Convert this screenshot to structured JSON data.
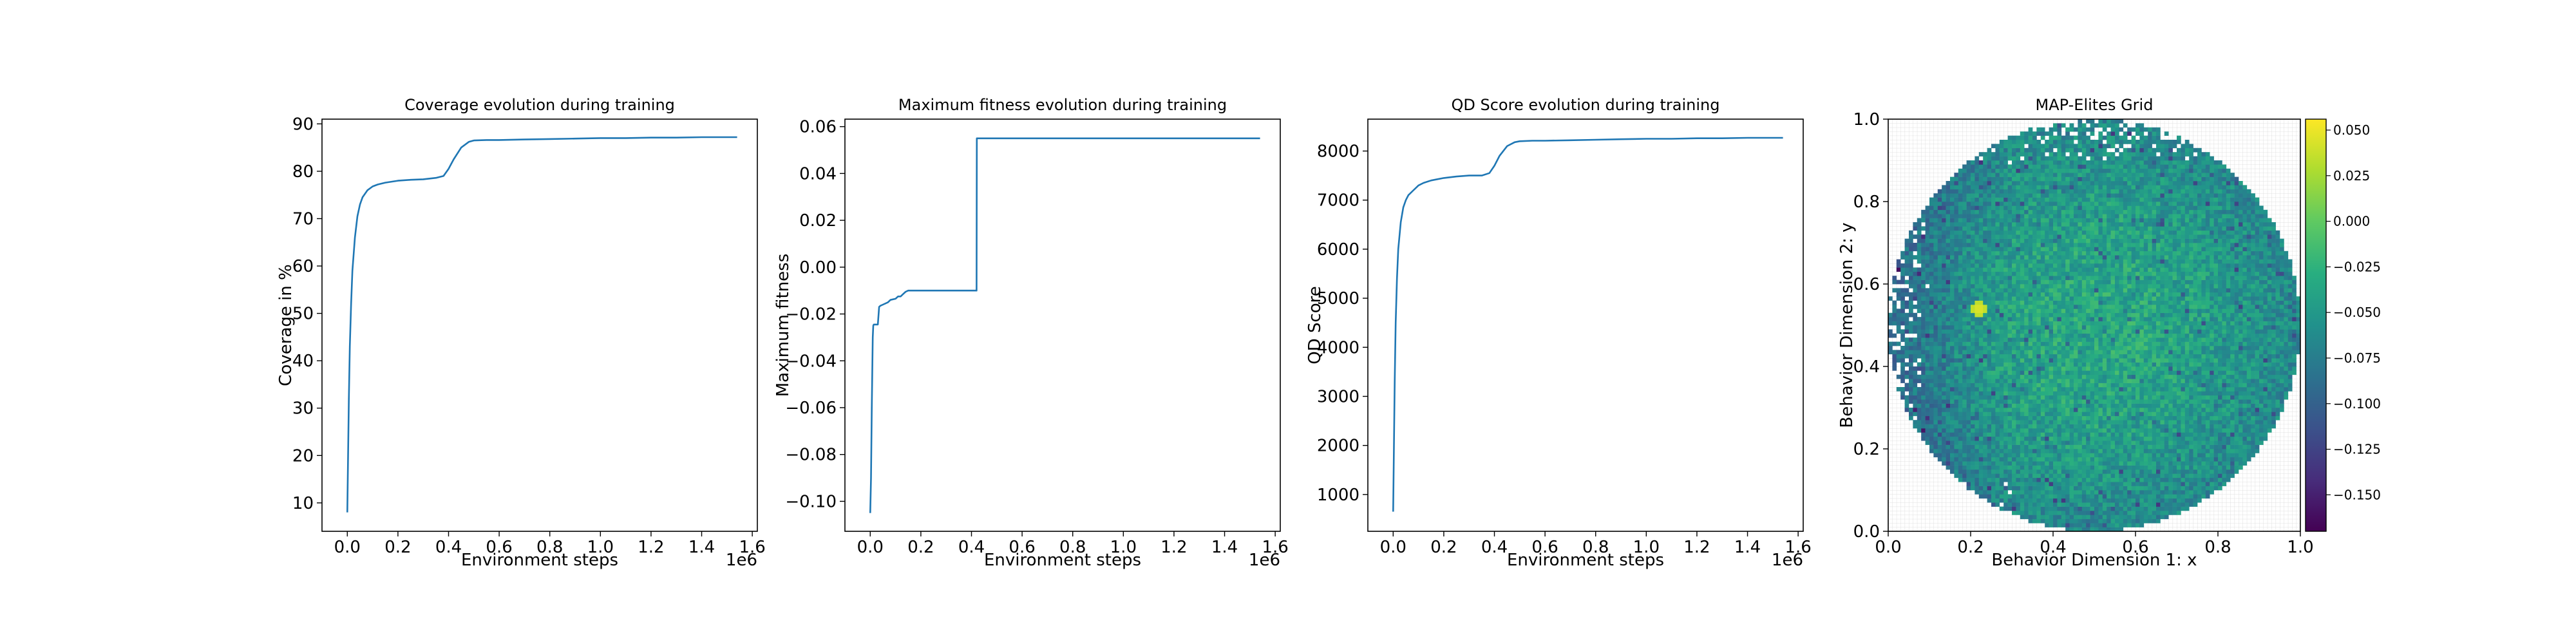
{
  "chart_data": [
    {
      "type": "line",
      "title": "Coverage evolution during training",
      "xlabel": "Environment steps",
      "ylabel": "Coverage in %",
      "x_offset_label": "1e6",
      "xlim": [
        -0.1,
        1.62
      ],
      "ylim": [
        4.0,
        91.0
      ],
      "xticks": [
        0.0,
        0.2,
        0.4,
        0.6,
        0.8,
        1.0,
        1.2,
        1.4,
        1.6
      ],
      "xtick_labels": [
        "0.0",
        "0.2",
        "0.4",
        "0.6",
        "0.8",
        "1.0",
        "1.2",
        "1.4",
        "1.6"
      ],
      "yticks": [
        10,
        20,
        30,
        40,
        50,
        60,
        70,
        80,
        90
      ],
      "ytick_labels": [
        "10",
        "20",
        "30",
        "40",
        "50",
        "60",
        "70",
        "80",
        "90"
      ],
      "grid": false,
      "color": "#1f77b4",
      "series": [
        {
          "x": [
            0.0,
            0.003,
            0.006,
            0.01,
            0.015,
            0.02,
            0.03,
            0.04,
            0.05,
            0.06,
            0.08,
            0.1,
            0.12,
            0.15,
            0.2,
            0.25,
            0.3,
            0.35,
            0.38,
            0.4,
            0.42,
            0.45,
            0.48,
            0.5,
            0.55,
            0.6,
            0.7,
            0.8,
            0.9,
            1.0,
            1.1,
            1.2,
            1.3,
            1.4,
            1.54
          ],
          "y": [
            8.0,
            20.0,
            32.0,
            43.0,
            52.0,
            59.0,
            66.0,
            70.5,
            73.0,
            74.5,
            76.0,
            76.8,
            77.2,
            77.6,
            78.0,
            78.2,
            78.3,
            78.6,
            79.0,
            80.5,
            82.5,
            85.0,
            86.2,
            86.5,
            86.6,
            86.6,
            86.7,
            86.8,
            86.9,
            87.0,
            87.0,
            87.1,
            87.1,
            87.2,
            87.2
          ]
        }
      ]
    },
    {
      "type": "line",
      "title": "Maximum fitness evolution during training",
      "xlabel": "Environment steps",
      "ylabel": "Maximum fitness",
      "x_offset_label": "1e6",
      "xlim": [
        -0.1,
        1.62
      ],
      "ylim": [
        -0.1128,
        0.0632
      ],
      "xticks": [
        0.0,
        0.2,
        0.4,
        0.6,
        0.8,
        1.0,
        1.2,
        1.4,
        1.6
      ],
      "xtick_labels": [
        "0.0",
        "0.2",
        "0.4",
        "0.6",
        "0.8",
        "1.0",
        "1.2",
        "1.4",
        "1.6"
      ],
      "yticks": [
        -0.1,
        -0.08,
        -0.06,
        -0.04,
        -0.02,
        0.0,
        0.02,
        0.04,
        0.06
      ],
      "ytick_labels": [
        "−0.10",
        "−0.08",
        "−0.06",
        "−0.04",
        "−0.02",
        "0.00",
        "0.02",
        "0.04",
        "0.06"
      ],
      "grid": false,
      "color": "#1f77b4",
      "series": [
        {
          "x": [
            0.0,
            0.003,
            0.006,
            0.01,
            0.012,
            0.014,
            0.02,
            0.03,
            0.035,
            0.04,
            0.05,
            0.07,
            0.08,
            0.1,
            0.11,
            0.12,
            0.13,
            0.14,
            0.15,
            0.2,
            0.3,
            0.42,
            0.421,
            0.5,
            1.0,
            1.54
          ],
          "y": [
            -0.105,
            -0.09,
            -0.06,
            -0.03,
            -0.025,
            -0.0245,
            -0.0245,
            -0.0245,
            -0.017,
            -0.0165,
            -0.016,
            -0.015,
            -0.014,
            -0.0135,
            -0.0125,
            -0.0125,
            -0.0115,
            -0.0105,
            -0.01,
            -0.01,
            -0.01,
            -0.01,
            0.055,
            0.055,
            0.055,
            0.055
          ]
        }
      ]
    },
    {
      "type": "line",
      "title": "QD Score evolution during training",
      "xlabel": "Environment steps",
      "ylabel": "QD Score",
      "x_offset_label": "1e6",
      "xlim": [
        -0.1,
        1.62
      ],
      "ylim": [
        250,
        8650
      ],
      "xticks": [
        0.0,
        0.2,
        0.4,
        0.6,
        0.8,
        1.0,
        1.2,
        1.4,
        1.6
      ],
      "xtick_labels": [
        "0.0",
        "0.2",
        "0.4",
        "0.6",
        "0.8",
        "1.0",
        "1.2",
        "1.4",
        "1.6"
      ],
      "yticks": [
        1000,
        2000,
        3000,
        4000,
        5000,
        6000,
        7000,
        8000
      ],
      "ytick_labels": [
        "1000",
        "2000",
        "3000",
        "4000",
        "5000",
        "6000",
        "7000",
        "8000"
      ],
      "grid": false,
      "color": "#1f77b4",
      "series": [
        {
          "x": [
            0.0,
            0.003,
            0.006,
            0.01,
            0.015,
            0.02,
            0.03,
            0.04,
            0.05,
            0.06,
            0.08,
            0.1,
            0.12,
            0.15,
            0.2,
            0.25,
            0.3,
            0.35,
            0.38,
            0.4,
            0.42,
            0.45,
            0.48,
            0.5,
            0.55,
            0.6,
            0.7,
            0.8,
            0.9,
            1.0,
            1.1,
            1.2,
            1.3,
            1.4,
            1.54
          ],
          "y": [
            650,
            2000,
            3300,
            4500,
            5400,
            6000,
            6550,
            6850,
            7000,
            7100,
            7200,
            7300,
            7350,
            7400,
            7450,
            7480,
            7500,
            7500,
            7550,
            7700,
            7900,
            8100,
            8180,
            8200,
            8210,
            8210,
            8220,
            8230,
            8240,
            8250,
            8250,
            8260,
            8260,
            8270,
            8270
          ]
        }
      ]
    },
    {
      "type": "heatmap",
      "title": "MAP-Elites Grid",
      "xlabel": "Behavior Dimension 1: x",
      "ylabel": "Behavior Dimension 2: y",
      "xlim": [
        0.0,
        1.0
      ],
      "ylim": [
        0.0,
        1.0
      ],
      "xticks": [
        0.0,
        0.2,
        0.4,
        0.6,
        0.8,
        1.0
      ],
      "xtick_labels": [
        "0.0",
        "0.2",
        "0.4",
        "0.6",
        "0.8",
        "1.0"
      ],
      "yticks": [
        0.0,
        0.2,
        0.4,
        0.6,
        0.8,
        1.0
      ],
      "ytick_labels": [
        "0.0",
        "0.2",
        "0.4",
        "0.6",
        "0.8",
        "1.0"
      ],
      "grid_cells": 100,
      "colormap": "viridis",
      "color_range": [
        -0.17,
        0.056
      ],
      "colorbar_ticks": [
        0.05,
        0.025,
        0.0,
        -0.025,
        -0.05,
        -0.075,
        -0.1,
        -0.125,
        -0.15
      ],
      "colorbar_tick_labels": [
        "0.050",
        "0.025",
        "0.000",
        "−0.025",
        "−0.050",
        "−0.075",
        "−0.100",
        "−0.125",
        "−0.150"
      ],
      "filled_region": "disk centered near (0.5, 0.5) with radius about 0.5; sparse cells toward the left and top edges",
      "center_value": -0.035,
      "edge_value": -0.065,
      "left_edge_value": -0.1,
      "hotspot": {
        "x": 0.22,
        "y": 0.54,
        "value": 0.05
      }
    }
  ]
}
